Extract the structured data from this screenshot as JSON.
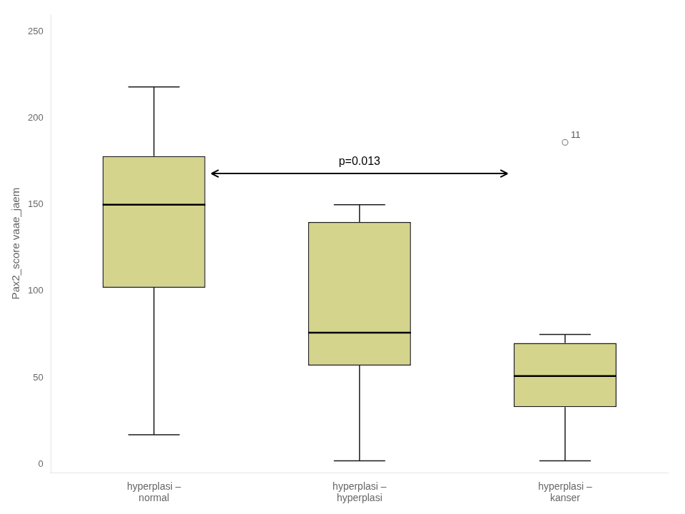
{
  "chart_data": {
    "type": "box",
    "categories": [
      "hyperplasi –\nnormal",
      "hyperplasi –\nhyperplasi",
      "hyperplasi –\nkanser"
    ],
    "boxes": [
      {
        "q1": 102,
        "median": 150,
        "q3": 178,
        "whislo": 17,
        "whishi": 218,
        "fliers": [],
        "flier_labels": []
      },
      {
        "q1": 57,
        "median": 76,
        "q3": 140,
        "whislo": 2,
        "whishi": 150,
        "fliers": [],
        "flier_labels": []
      },
      {
        "q1": 33,
        "median": 51,
        "q3": 70,
        "whislo": 2,
        "whishi": 75,
        "fliers": [
          186
        ],
        "flier_labels": [
          "11"
        ]
      }
    ],
    "color": "#d4d48c",
    "ylabel": "Pax2_score vaae_jaem",
    "ylim": [
      -5,
      260
    ],
    "yticks": [
      0,
      50,
      100,
      150,
      200,
      250
    ],
    "grid": false,
    "annotations": [
      {
        "text": "p=0.013",
        "x1": 0.28,
        "x2": 1.72,
        "y": 168
      }
    ]
  }
}
